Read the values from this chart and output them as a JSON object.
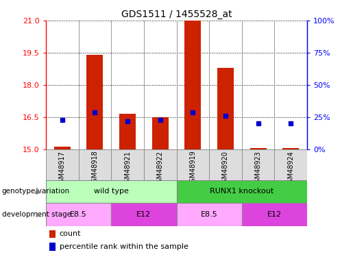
{
  "title": "GDS1511 / 1455528_at",
  "samples": [
    "GSM48917",
    "GSM48918",
    "GSM48921",
    "GSM48922",
    "GSM48919",
    "GSM48920",
    "GSM48923",
    "GSM48924"
  ],
  "count_values": [
    15.1,
    19.4,
    16.65,
    16.5,
    21.0,
    18.8,
    15.05,
    15.05
  ],
  "percentile_values": [
    16.35,
    16.7,
    16.3,
    16.35,
    16.7,
    16.55,
    16.2,
    16.2
  ],
  "ylim_left": [
    15,
    21
  ],
  "ylim_right": [
    0,
    100
  ],
  "yticks_left": [
    15,
    16.5,
    18,
    19.5,
    21
  ],
  "yticks_right": [
    0,
    25,
    50,
    75,
    100
  ],
  "bar_color": "#cc2200",
  "dot_color": "#0000cc",
  "genotype_groups": [
    {
      "label": "wild type",
      "start": 0,
      "end": 3,
      "color": "#bbffbb"
    },
    {
      "label": "RUNX1 knockout",
      "start": 4,
      "end": 7,
      "color": "#44cc44"
    }
  ],
  "stage_groups": [
    {
      "label": "E8.5",
      "start": 0,
      "end": 1,
      "color": "#ffaaff"
    },
    {
      "label": "E12",
      "start": 2,
      "end": 3,
      "color": "#dd44dd"
    },
    {
      "label": "E8.5",
      "start": 4,
      "end": 5,
      "color": "#ffaaff"
    },
    {
      "label": "E12",
      "start": 6,
      "end": 7,
      "color": "#dd44dd"
    }
  ],
  "bar_width": 0.5,
  "bar_bottom": 15,
  "dot_size": 5
}
